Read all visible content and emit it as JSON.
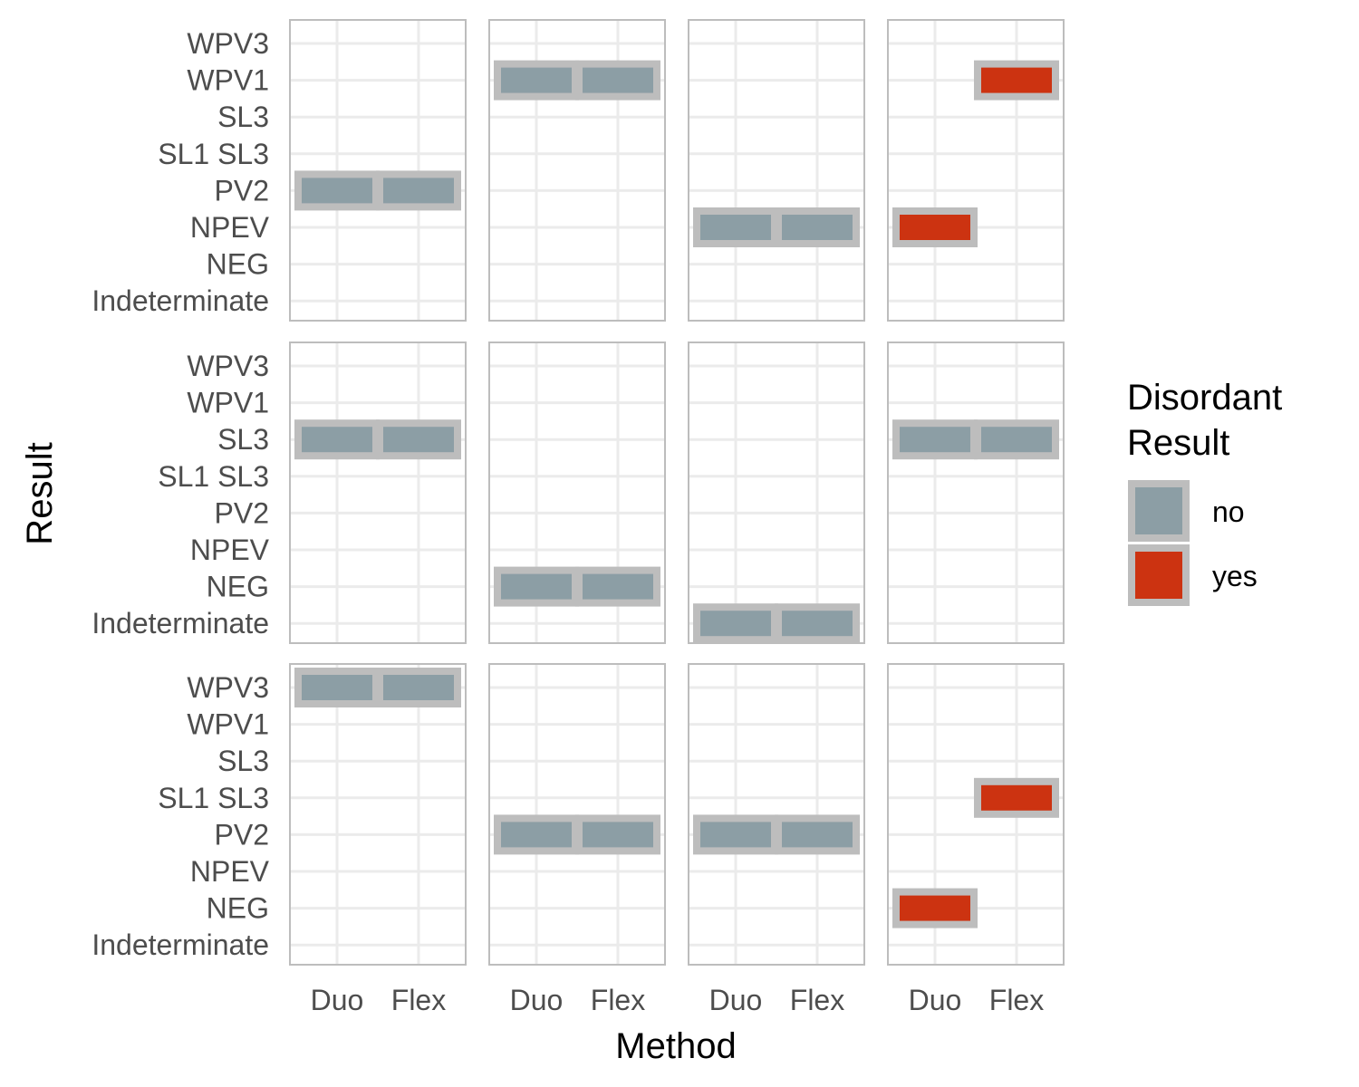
{
  "chart_data": {
    "type": "heatmap",
    "xlabel": "Method",
    "ylabel": "Result",
    "x_categories": [
      "Duo",
      "Flex"
    ],
    "y_categories": [
      "Indeterminate",
      "NEG",
      "NPEV",
      "PV2",
      "SL1 SL3",
      "SL3",
      "WPV1",
      "WPV3"
    ],
    "legend": {
      "title_lines": [
        "Disordant",
        "Result"
      ],
      "placement": "right",
      "entries": [
        {
          "label": "no",
          "color": "#8c9ea5"
        },
        {
          "label": "yes",
          "color": "#cc3311"
        }
      ]
    },
    "tile_border_color": "#bdbdbd",
    "grid": true,
    "facet_rows": 3,
    "facet_cols": 4,
    "facets": [
      {
        "row": 0,
        "col": 0,
        "tiles": [
          {
            "method": "Duo",
            "result": "PV2",
            "discordant": "no"
          },
          {
            "method": "Flex",
            "result": "PV2",
            "discordant": "no"
          }
        ]
      },
      {
        "row": 0,
        "col": 1,
        "tiles": [
          {
            "method": "Duo",
            "result": "WPV1",
            "discordant": "no"
          },
          {
            "method": "Flex",
            "result": "WPV1",
            "discordant": "no"
          }
        ]
      },
      {
        "row": 0,
        "col": 2,
        "tiles": [
          {
            "method": "Duo",
            "result": "NPEV",
            "discordant": "no"
          },
          {
            "method": "Flex",
            "result": "NPEV",
            "discordant": "no"
          }
        ]
      },
      {
        "row": 0,
        "col": 3,
        "tiles": [
          {
            "method": "Duo",
            "result": "NPEV",
            "discordant": "yes"
          },
          {
            "method": "Flex",
            "result": "WPV1",
            "discordant": "yes"
          }
        ]
      },
      {
        "row": 1,
        "col": 0,
        "tiles": [
          {
            "method": "Duo",
            "result": "SL3",
            "discordant": "no"
          },
          {
            "method": "Flex",
            "result": "SL3",
            "discordant": "no"
          }
        ]
      },
      {
        "row": 1,
        "col": 1,
        "tiles": [
          {
            "method": "Duo",
            "result": "NEG",
            "discordant": "no"
          },
          {
            "method": "Flex",
            "result": "NEG",
            "discordant": "no"
          }
        ]
      },
      {
        "row": 1,
        "col": 2,
        "tiles": [
          {
            "method": "Duo",
            "result": "Indeterminate",
            "discordant": "no"
          },
          {
            "method": "Flex",
            "result": "Indeterminate",
            "discordant": "no"
          }
        ]
      },
      {
        "row": 1,
        "col": 3,
        "tiles": [
          {
            "method": "Duo",
            "result": "SL3",
            "discordant": "no"
          },
          {
            "method": "Flex",
            "result": "SL3",
            "discordant": "no"
          }
        ]
      },
      {
        "row": 2,
        "col": 0,
        "tiles": [
          {
            "method": "Duo",
            "result": "WPV3",
            "discordant": "no"
          },
          {
            "method": "Flex",
            "result": "WPV3",
            "discordant": "no"
          }
        ]
      },
      {
        "row": 2,
        "col": 1,
        "tiles": [
          {
            "method": "Duo",
            "result": "PV2",
            "discordant": "no"
          },
          {
            "method": "Flex",
            "result": "PV2",
            "discordant": "no"
          }
        ]
      },
      {
        "row": 2,
        "col": 2,
        "tiles": [
          {
            "method": "Duo",
            "result": "PV2",
            "discordant": "no"
          },
          {
            "method": "Flex",
            "result": "PV2",
            "discordant": "no"
          }
        ]
      },
      {
        "row": 2,
        "col": 3,
        "tiles": [
          {
            "method": "Duo",
            "result": "NEG",
            "discordant": "yes"
          },
          {
            "method": "Flex",
            "result": "SL1 SL3",
            "discordant": "yes"
          }
        ]
      }
    ]
  }
}
